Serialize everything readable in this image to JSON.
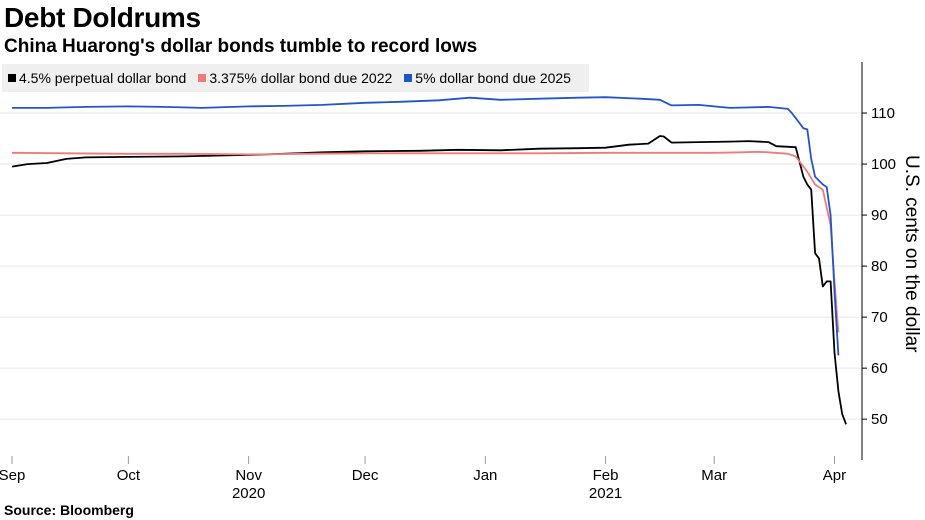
{
  "title": "Debt Doldrums",
  "subtitle": "China Huarong's dollar bonds tumble to record lows",
  "source": "Source: Bloomberg",
  "chart_data": {
    "type": "line",
    "ylabel": "U.S. cents on the dollar",
    "ylim": [
      42,
      120
    ],
    "yticks": [
      50,
      60,
      70,
      80,
      90,
      100,
      110
    ],
    "xlim": [
      "2020-09-01",
      "2021-04-05"
    ],
    "xticks": [
      {
        "date": "2020-09-01",
        "label": "Sep",
        "year": ""
      },
      {
        "date": "2020-10-01",
        "label": "Oct",
        "year": ""
      },
      {
        "date": "2020-11-01",
        "label": "Nov",
        "year": "2020"
      },
      {
        "date": "2020-12-01",
        "label": "Dec",
        "year": ""
      },
      {
        "date": "2021-01-01",
        "label": "Jan",
        "year": ""
      },
      {
        "date": "2021-02-01",
        "label": "Feb",
        "year": "2021"
      },
      {
        "date": "2021-03-01",
        "label": "Mar",
        "year": ""
      },
      {
        "date": "2021-04-01",
        "label": "Apr",
        "year": ""
      }
    ],
    "legend_position": "top-left",
    "series": [
      {
        "name": "4.5% perpetual dollar bond",
        "color": "#000000",
        "points": [
          [
            "2020-09-01",
            99.5
          ],
          [
            "2020-09-05",
            100.0
          ],
          [
            "2020-09-10",
            100.2
          ],
          [
            "2020-09-15",
            101.0
          ],
          [
            "2020-09-20",
            101.3
          ],
          [
            "2020-10-01",
            101.4
          ],
          [
            "2020-10-15",
            101.5
          ],
          [
            "2020-11-01",
            101.8
          ],
          [
            "2020-11-10",
            102.0
          ],
          [
            "2020-11-20",
            102.3
          ],
          [
            "2020-12-01",
            102.5
          ],
          [
            "2020-12-15",
            102.6
          ],
          [
            "2020-12-25",
            102.8
          ],
          [
            "2021-01-05",
            102.7
          ],
          [
            "2021-01-15",
            103.0
          ],
          [
            "2021-01-25",
            103.1
          ],
          [
            "2021-02-01",
            103.2
          ],
          [
            "2021-02-07",
            103.8
          ],
          [
            "2021-02-12",
            104.0
          ],
          [
            "2021-02-15",
            105.5
          ],
          [
            "2021-02-16",
            105.4
          ],
          [
            "2021-02-18",
            104.2
          ],
          [
            "2021-02-25",
            104.3
          ],
          [
            "2021-03-05",
            104.4
          ],
          [
            "2021-03-10",
            104.5
          ],
          [
            "2021-03-15",
            104.3
          ],
          [
            "2021-03-17",
            103.5
          ],
          [
            "2021-03-22",
            103.3
          ],
          [
            "2021-03-24",
            97.5
          ],
          [
            "2021-03-25",
            96.0
          ],
          [
            "2021-03-26",
            95.0
          ],
          [
            "2021-03-27",
            82.5
          ],
          [
            "2021-03-28",
            81.5
          ],
          [
            "2021-03-29",
            76.0
          ],
          [
            "2021-03-30",
            77.0
          ],
          [
            "2021-03-31",
            77.0
          ],
          [
            "2021-04-01",
            63.0
          ],
          [
            "2021-04-02",
            55.5
          ],
          [
            "2021-04-03",
            51.0
          ],
          [
            "2021-04-04",
            49.0
          ]
        ]
      },
      {
        "name": "3.375% dollar bond due 2022",
        "color": "#f07a7a",
        "points": [
          [
            "2020-09-01",
            102.2
          ],
          [
            "2020-09-15",
            102.1
          ],
          [
            "2020-10-01",
            102.0
          ],
          [
            "2020-10-15",
            102.0
          ],
          [
            "2020-11-01",
            101.9
          ],
          [
            "2020-11-15",
            102.0
          ],
          [
            "2020-12-01",
            102.1
          ],
          [
            "2020-12-15",
            102.1
          ],
          [
            "2021-01-01",
            102.1
          ],
          [
            "2021-01-15",
            102.1
          ],
          [
            "2021-02-01",
            102.2
          ],
          [
            "2021-02-15",
            102.2
          ],
          [
            "2021-03-01",
            102.2
          ],
          [
            "2021-03-08",
            102.3
          ],
          [
            "2021-03-12",
            102.4
          ],
          [
            "2021-03-15",
            102.3
          ],
          [
            "2021-03-20",
            102.0
          ],
          [
            "2021-03-22",
            101.5
          ],
          [
            "2021-03-25",
            98.5
          ],
          [
            "2021-03-27",
            96.0
          ],
          [
            "2021-03-29",
            95.0
          ],
          [
            "2021-03-31",
            88.0
          ],
          [
            "2021-04-01",
            77.0
          ],
          [
            "2021-04-02",
            67.0
          ]
        ]
      },
      {
        "name": "5% dollar bond due 2025",
        "color": "#2255cc",
        "points": [
          [
            "2020-09-01",
            111.0
          ],
          [
            "2020-09-10",
            111.0
          ],
          [
            "2020-09-20",
            111.2
          ],
          [
            "2020-10-01",
            111.3
          ],
          [
            "2020-10-10",
            111.2
          ],
          [
            "2020-10-20",
            111.0
          ],
          [
            "2020-11-01",
            111.3
          ],
          [
            "2020-11-10",
            111.4
          ],
          [
            "2020-11-20",
            111.6
          ],
          [
            "2020-12-01",
            112.0
          ],
          [
            "2020-12-10",
            112.2
          ],
          [
            "2020-12-20",
            112.5
          ],
          [
            "2020-12-28",
            113.0
          ],
          [
            "2021-01-05",
            112.6
          ],
          [
            "2021-01-15",
            112.8
          ],
          [
            "2021-01-25",
            113.0
          ],
          [
            "2021-02-01",
            113.1
          ],
          [
            "2021-02-10",
            112.8
          ],
          [
            "2021-02-15",
            112.6
          ],
          [
            "2021-02-18",
            111.5
          ],
          [
            "2021-02-25",
            111.6
          ],
          [
            "2021-03-05",
            111.0
          ],
          [
            "2021-03-15",
            111.2
          ],
          [
            "2021-03-20",
            110.8
          ],
          [
            "2021-03-21",
            110.0
          ],
          [
            "2021-03-23",
            108.0
          ],
          [
            "2021-03-24",
            107.0
          ],
          [
            "2021-03-25",
            106.8
          ],
          [
            "2021-03-26",
            101.0
          ],
          [
            "2021-03-27",
            97.5
          ],
          [
            "2021-03-29",
            96.0
          ],
          [
            "2021-03-30",
            95.5
          ],
          [
            "2021-03-31",
            90.0
          ],
          [
            "2021-04-01",
            75.0
          ],
          [
            "2021-04-02",
            62.5
          ]
        ]
      }
    ]
  }
}
